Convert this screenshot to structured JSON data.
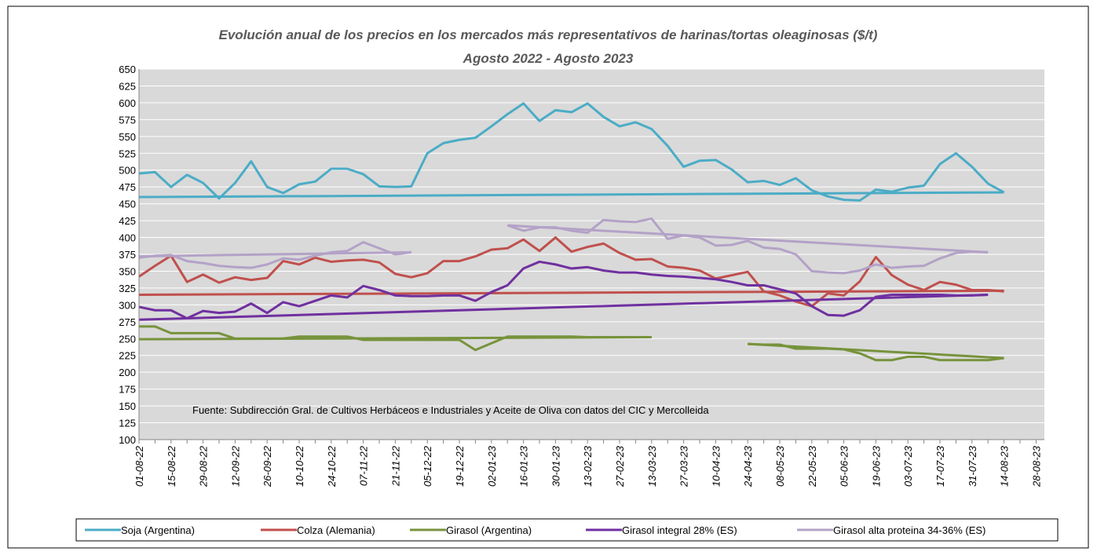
{
  "chart_data": {
    "type": "line",
    "title": "Evolución anual de los precios en los mercados más representativos de harinas/tortas oleaginosas ($/t)",
    "subtitle": "Agosto 2022 - Agosto 2023",
    "annotation": "Fuente: Subdirección Gral. de Cultivos Herbáceos e Industriales y Aceite de Oliva con datos del CIC y Mercolleida",
    "categories": [
      "01-08-22",
      null,
      "15-08-22",
      null,
      "29-08-22",
      null,
      "12-09-22",
      null,
      "26-09-22",
      null,
      "10-10-22",
      null,
      "24-10-22",
      null,
      "07-11-22",
      null,
      "21-11-22",
      null,
      "05-12-22",
      null,
      "19-12-22",
      null,
      "02-01-23",
      null,
      "16-01-23",
      null,
      "30-01-23",
      null,
      "13-02-23",
      null,
      "27-02-23",
      null,
      "13-03-23",
      null,
      "27-03-23",
      null,
      "10-04-23",
      null,
      "24-04-23",
      null,
      "08-05-23",
      null,
      "22-05-23",
      null,
      "05-06-23",
      null,
      "19-06-23",
      null,
      "03-07-23",
      null,
      "17-07-23",
      null,
      "31-07-23",
      null,
      "14-08-23",
      null,
      "28-08-23"
    ],
    "ylim": [
      100,
      650
    ],
    "yticks": [
      100,
      125,
      150,
      175,
      200,
      225,
      250,
      275,
      300,
      325,
      350,
      375,
      400,
      425,
      450,
      475,
      500,
      525,
      550,
      575,
      600,
      625,
      650
    ],
    "grid": true,
    "legend": "bottom",
    "series": [
      {
        "name": "Soja (Argentina)",
        "color": "#4bacc6",
        "values": [
          495,
          497,
          475,
          493,
          481,
          458,
          481,
          513,
          475,
          466,
          479,
          483,
          502,
          502,
          494,
          476,
          475,
          476,
          525,
          540,
          545,
          548,
          565,
          583,
          599,
          573,
          589,
          586,
          599,
          579,
          565,
          571,
          561,
          536,
          505,
          514,
          515,
          501,
          482,
          484,
          478,
          488,
          470,
          461,
          456,
          455,
          471,
          468,
          474,
          477,
          509,
          525,
          505,
          480,
          467,
          null,
          null
        ],
        "trend": [
          {
            "from": 0,
            "to": 54,
            "values": [
              460,
              467
            ]
          }
        ]
      },
      {
        "name": "Colza (Alemania)",
        "color": "#c0504d",
        "values": [
          342,
          358,
          373,
          334,
          345,
          333,
          341,
          337,
          340,
          365,
          360,
          370,
          364,
          366,
          367,
          363,
          346,
          341,
          347,
          365,
          365,
          372,
          382,
          384,
          397,
          380,
          400,
          379,
          386,
          391,
          377,
          367,
          368,
          357,
          355,
          351,
          339,
          344,
          349,
          320,
          314,
          305,
          298,
          317,
          314,
          335,
          371,
          344,
          330,
          322,
          334,
          330,
          322,
          322,
          320,
          null,
          null
        ],
        "trend": [
          {
            "from": 0,
            "to": 54,
            "values": [
              315,
              321
            ]
          }
        ]
      },
      {
        "name": "Girasol (Argentina)",
        "color": "#77933c",
        "values": [
          268,
          268,
          258,
          258,
          258,
          258,
          250,
          250,
          250,
          250,
          253,
          253,
          253,
          253,
          248,
          248,
          248,
          248,
          248,
          248,
          248,
          233,
          243,
          253,
          253,
          253,
          253,
          253,
          252,
          252,
          252,
          252,
          252,
          null,
          null,
          null,
          null,
          null,
          242,
          241,
          241,
          235,
          235,
          235,
          234,
          228,
          218,
          218,
          223,
          223,
          218,
          218,
          218,
          218,
          221,
          null,
          null
        ],
        "trend": [
          {
            "from": 0,
            "to": 32,
            "values": [
              249,
              252
            ]
          },
          {
            "from": 38,
            "to": 54,
            "values": [
              242,
              221
            ]
          }
        ]
      },
      {
        "name": "Girasol integral 28% (ES)",
        "color": "#7030a0",
        "values": [
          297,
          292,
          292,
          280,
          291,
          288,
          290,
          302,
          288,
          304,
          298,
          306,
          314,
          311,
          328,
          322,
          314,
          313,
          313,
          314,
          314,
          306,
          319,
          329,
          354,
          364,
          360,
          354,
          356,
          351,
          348,
          348,
          345,
          343,
          342,
          340,
          338,
          334,
          329,
          329,
          323,
          317,
          298,
          285,
          284,
          292,
          312,
          315,
          315,
          315,
          315,
          314,
          314,
          315,
          null,
          null,
          null
        ],
        "trend": [
          {
            "from": 0,
            "to": 53,
            "values": [
              278,
              315
            ]
          }
        ]
      },
      {
        "name": "Girasol alta proteina 34-36% (ES)",
        "color": "#b3a2c7",
        "values": [
          370,
          373,
          374,
          365,
          362,
          358,
          356,
          355,
          360,
          369,
          367,
          373,
          378,
          380,
          393,
          384,
          375,
          378,
          null,
          null,
          null,
          null,
          null,
          418,
          410,
          415,
          415,
          410,
          407,
          426,
          424,
          423,
          428,
          398,
          403,
          400,
          388,
          389,
          395,
          385,
          383,
          375,
          350,
          348,
          347,
          351,
          360,
          355,
          357,
          358,
          369,
          377,
          379,
          378,
          null,
          null,
          null
        ],
        "trend": [
          {
            "from": 0,
            "to": 17,
            "values": [
              372,
              378
            ]
          },
          {
            "from": 23,
            "to": 53,
            "values": [
              418,
              378
            ]
          }
        ]
      }
    ]
  }
}
